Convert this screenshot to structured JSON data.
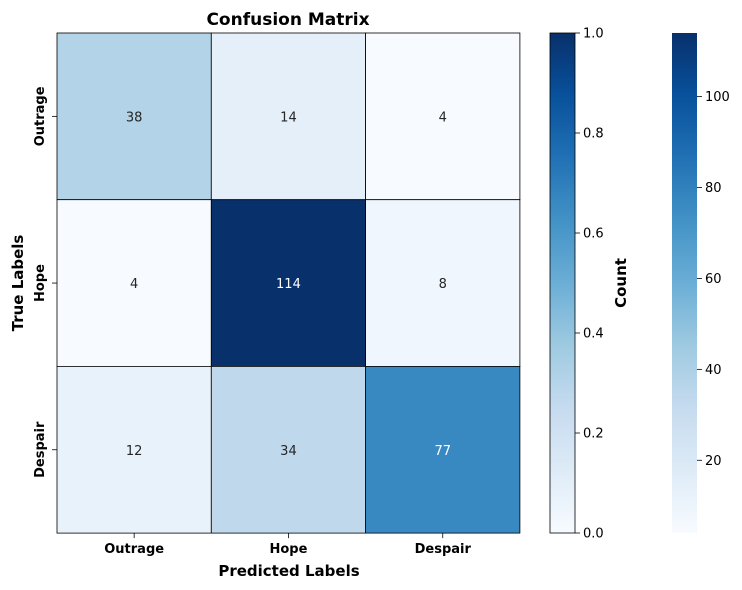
{
  "chart_data": {
    "type": "heatmap",
    "title": "Confusion Matrix",
    "xlabel": "Predicted Labels",
    "ylabel": "True Labels",
    "x_categories": [
      "Outrage",
      "Hope",
      "Despair"
    ],
    "y_categories": [
      "Outrage",
      "Hope",
      "Despair"
    ],
    "values": [
      [
        38,
        14,
        4
      ],
      [
        4,
        114,
        8
      ],
      [
        12,
        34,
        77
      ]
    ],
    "colormap": "Blues",
    "colorbar_inner": {
      "label": "Count",
      "range": [
        0,
        1
      ],
      "ticks": [
        "0.0",
        "0.2",
        "0.4",
        "0.6",
        "0.8",
        "1.0"
      ]
    },
    "colorbar_outer": {
      "range": [
        4,
        114
      ],
      "ticks": [
        "20",
        "40",
        "60",
        "80",
        "100"
      ]
    }
  }
}
